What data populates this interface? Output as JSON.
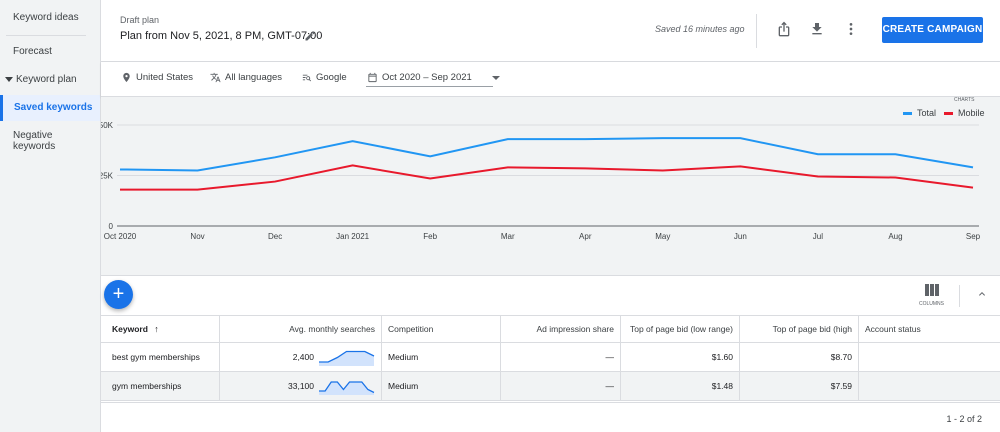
{
  "sidebar": {
    "items": [
      {
        "label": "Keyword ideas"
      },
      {
        "label": "Forecast"
      },
      {
        "label": "Keyword plan"
      },
      {
        "label": "Saved keywords"
      },
      {
        "label": "Negative keywords"
      }
    ]
  },
  "header": {
    "draft_label": "Draft plan",
    "plan_title": "Plan from Nov 5, 2021, 8 PM, GMT-07:00",
    "saved_status": "Saved 16 minutes ago",
    "create_button": "CREATE CAMPAIGN",
    "icons": [
      "share-icon",
      "download-icon",
      "more-vert-icon",
      "edit-icon"
    ]
  },
  "filters": {
    "location": "United States",
    "language": "All languages",
    "network": "Google",
    "date_range": "Oct 2020 – Sep 2021"
  },
  "chart_labels": {
    "charts": "CHARTS"
  },
  "chart_data": {
    "type": "line",
    "categories": [
      "Oct 2020",
      "Nov",
      "Dec",
      "Jan 2021",
      "Feb",
      "Mar",
      "Apr",
      "May",
      "Jun",
      "Jul",
      "Aug",
      "Sep"
    ],
    "series": [
      {
        "name": "Total",
        "color": "#2196f3",
        "values": [
          28000,
          27500,
          34000,
          42000,
          34500,
          43000,
          43000,
          43500,
          43500,
          35500,
          35500,
          29000
        ]
      },
      {
        "name": "Mobile",
        "color": "#e8192c",
        "values": [
          18000,
          18000,
          22000,
          30000,
          23500,
          29000,
          28500,
          27500,
          29500,
          24500,
          24000,
          19000
        ]
      }
    ],
    "yticks": [
      "0",
      "25K",
      "50K"
    ],
    "ylim": [
      0,
      50000
    ],
    "grid": true,
    "legend_position": "top-right"
  },
  "table": {
    "columns_label": "COLUMNS",
    "headers": [
      "Keyword",
      "Avg. monthly searches",
      "Competition",
      "Ad impression share",
      "Top of page bid (low range)",
      "Top of page bid (high range)",
      "Account status"
    ],
    "rows": [
      {
        "keyword": "best gym memberships",
        "searches": "2,400",
        "competition": "Medium",
        "impression_share": "—",
        "bid_low": "$1.60",
        "bid_high": "$8.70",
        "status": "",
        "trend": [
          0.2,
          0.2,
          0.5,
          0.9,
          0.9,
          0.9,
          0.6
        ]
      },
      {
        "keyword": "gym memberships",
        "searches": "33,100",
        "competition": "Medium",
        "impression_share": "—",
        "bid_low": "$1.48",
        "bid_high": "$7.59",
        "status": "",
        "trend": [
          0.2,
          0.2,
          0.8,
          0.8,
          0.3,
          0.8,
          0.8,
          0.8,
          0.3,
          0.1
        ]
      }
    ],
    "pagination": "1 - 2 of 2"
  }
}
